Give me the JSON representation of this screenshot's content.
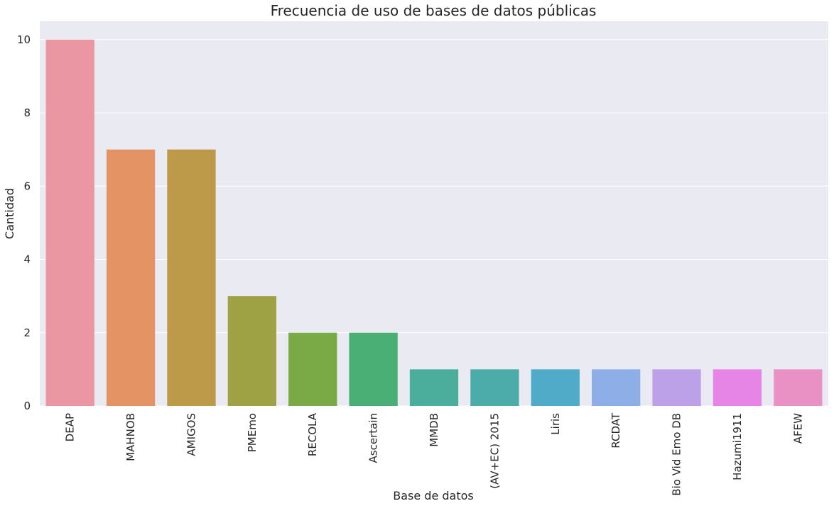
{
  "chart_data": {
    "type": "bar",
    "title": "Frecuencia de uso de bases de datos públicas",
    "xlabel": "Base de datos",
    "ylabel": "Cantidad",
    "ylim": [
      0,
      10.5
    ],
    "yticks": [
      0,
      2,
      4,
      6,
      8,
      10
    ],
    "grid": true,
    "categories": [
      "DEAP",
      "MAHNOB",
      "AMIGOS",
      "PMEmo",
      "RECOLA",
      "Ascertain",
      "MMDB",
      "(AV+EC) 2015",
      "Liris",
      "RCDAT",
      "Bio Vid Emo DB",
      "Hazumi1911",
      "AFEW"
    ],
    "values": [
      10,
      7,
      7,
      3,
      2,
      2,
      1,
      1,
      1,
      1,
      1,
      1,
      1
    ],
    "colors": [
      "#ea96a3",
      "#e49464",
      "#bd9a4a",
      "#9ea244",
      "#79aa45",
      "#4aaf75",
      "#4bae9c",
      "#4caca9",
      "#50abc8",
      "#8eaee7",
      "#bda1e8",
      "#e685e6",
      "#e991c5"
    ],
    "background": "#eaeaf2"
  }
}
